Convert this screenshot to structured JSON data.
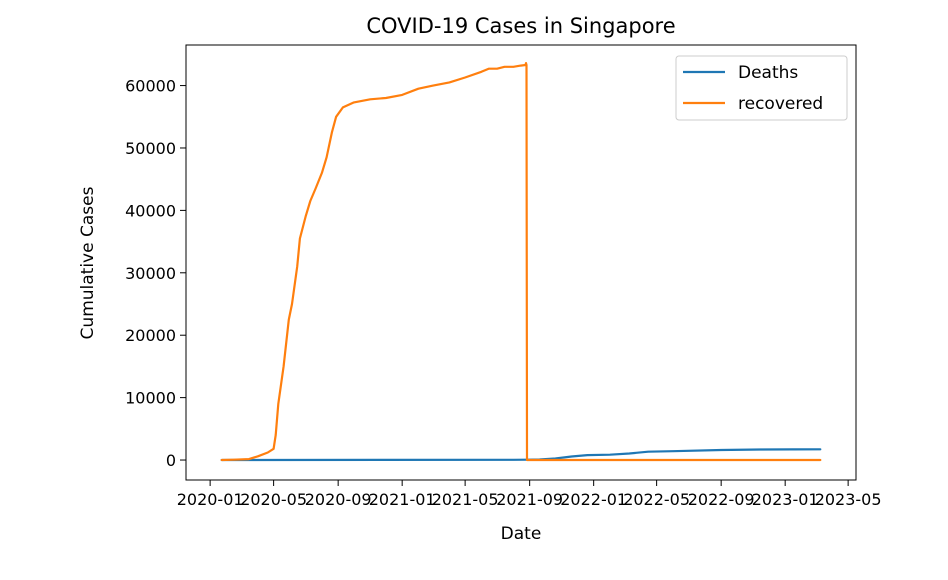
{
  "chart_data": {
    "type": "line",
    "title": "COVID-19 Cases in Singapore",
    "xlabel": "Date",
    "ylabel": "Cumulative Cases",
    "grid": false,
    "legend_position": "top-right",
    "xlim": [
      "2019-11-16",
      "2023-05-16"
    ],
    "ylim": [
      -3200,
      66500
    ],
    "x_ticks": [
      {
        "value": "2020-01-01",
        "label": "2020-01"
      },
      {
        "value": "2020-05-01",
        "label": "2020-05"
      },
      {
        "value": "2020-09-01",
        "label": "2020-09"
      },
      {
        "value": "2021-01-01",
        "label": "2021-01"
      },
      {
        "value": "2021-05-01",
        "label": "2021-05"
      },
      {
        "value": "2021-09-01",
        "label": "2021-09"
      },
      {
        "value": "2022-01-01",
        "label": "2022-01"
      },
      {
        "value": "2022-05-01",
        "label": "2022-05"
      },
      {
        "value": "2022-09-01",
        "label": "2022-09"
      },
      {
        "value": "2023-01-01",
        "label": "2023-01"
      },
      {
        "value": "2023-05-01",
        "label": "2023-05"
      }
    ],
    "y_ticks": [
      0,
      10000,
      20000,
      30000,
      40000,
      50000,
      60000
    ],
    "series": [
      {
        "name": "Deaths",
        "color": "#1f77b4",
        "points": [
          [
            "2020-01-23",
            0
          ],
          [
            "2021-08-01",
            40
          ],
          [
            "2021-08-27",
            50
          ],
          [
            "2021-09-20",
            80
          ],
          [
            "2021-10-20",
            250
          ],
          [
            "2021-11-20",
            560
          ],
          [
            "2021-12-20",
            790
          ],
          [
            "2022-02-01",
            860
          ],
          [
            "2022-03-10",
            1050
          ],
          [
            "2022-04-15",
            1330
          ],
          [
            "2022-06-01",
            1410
          ],
          [
            "2022-09-01",
            1600
          ],
          [
            "2022-11-15",
            1690
          ],
          [
            "2023-01-15",
            1710
          ],
          [
            "2023-03-09",
            1720
          ]
        ]
      },
      {
        "name": "recovered",
        "color": "#ff7f0e",
        "points": [
          [
            "2020-01-23",
            0
          ],
          [
            "2020-02-15",
            50
          ],
          [
            "2020-03-15",
            150
          ],
          [
            "2020-04-01",
            600
          ],
          [
            "2020-04-20",
            1200
          ],
          [
            "2020-05-01",
            1800
          ],
          [
            "2020-05-05",
            4000
          ],
          [
            "2020-05-10",
            9000
          ],
          [
            "2020-05-20",
            15000
          ],
          [
            "2020-05-30",
            22500
          ],
          [
            "2020-06-05",
            25000
          ],
          [
            "2020-06-15",
            31000
          ],
          [
            "2020-06-20",
            35500
          ],
          [
            "2020-07-01",
            39000
          ],
          [
            "2020-07-10",
            41500
          ],
          [
            "2020-07-20",
            43500
          ],
          [
            "2020-08-01",
            46000
          ],
          [
            "2020-08-10",
            48500
          ],
          [
            "2020-08-20",
            52500
          ],
          [
            "2020-08-28",
            55000
          ],
          [
            "2020-09-10",
            56500
          ],
          [
            "2020-10-01",
            57300
          ],
          [
            "2020-11-01",
            57800
          ],
          [
            "2020-12-01",
            58000
          ],
          [
            "2021-01-01",
            58500
          ],
          [
            "2021-02-01",
            59500
          ],
          [
            "2021-03-01",
            60000
          ],
          [
            "2021-04-01",
            60500
          ],
          [
            "2021-05-01",
            61300
          ],
          [
            "2021-06-01",
            62200
          ],
          [
            "2021-06-15",
            62700
          ],
          [
            "2021-07-01",
            62700
          ],
          [
            "2021-07-15",
            63000
          ],
          [
            "2021-08-01",
            63000
          ],
          [
            "2021-08-15",
            63200
          ],
          [
            "2021-08-24",
            63300
          ],
          [
            "2021-08-25",
            63600
          ],
          [
            "2021-08-26",
            63300
          ],
          [
            "2021-08-27",
            0
          ],
          [
            "2023-03-09",
            0
          ]
        ]
      }
    ]
  }
}
